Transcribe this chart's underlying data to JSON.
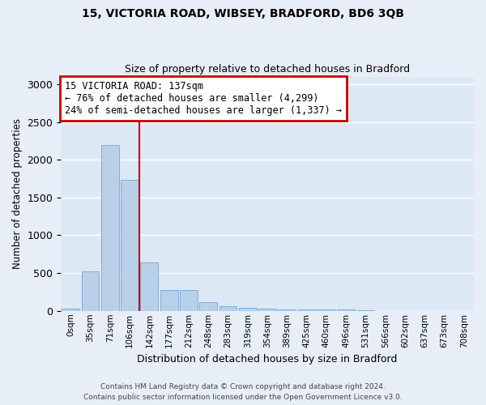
{
  "title1": "15, VICTORIA ROAD, WIBSEY, BRADFORD, BD6 3QB",
  "title2": "Size of property relative to detached houses in Bradford",
  "xlabel": "Distribution of detached houses by size in Bradford",
  "ylabel": "Number of detached properties",
  "categories": [
    "0sqm",
    "35sqm",
    "71sqm",
    "106sqm",
    "142sqm",
    "177sqm",
    "212sqm",
    "248sqm",
    "283sqm",
    "319sqm",
    "354sqm",
    "389sqm",
    "425sqm",
    "460sqm",
    "496sqm",
    "531sqm",
    "566sqm",
    "602sqm",
    "637sqm",
    "673sqm",
    "708sqm"
  ],
  "values": [
    30,
    525,
    2190,
    1730,
    640,
    280,
    280,
    120,
    65,
    40,
    25,
    20,
    20,
    20,
    20,
    5,
    2,
    2,
    2,
    2,
    2
  ],
  "bar_color": "#b8d0e8",
  "bar_edge_color": "#6699cc",
  "background_color": "#dde8f5",
  "grid_color": "#ffffff",
  "annotation_text": "15 VICTORIA ROAD: 137sqm\n← 76% of detached houses are smaller (4,299)\n24% of semi-detached houses are larger (1,337) →",
  "annotation_box_color": "#ffffff",
  "annotation_box_edge": "#cc0000",
  "vline_index": 4,
  "vline_color": "#cc0000",
  "ylim": [
    0,
    3100
  ],
  "yticks": [
    0,
    500,
    1000,
    1500,
    2000,
    2500,
    3000
  ],
  "fig_bg": "#e8eef8",
  "footer1": "Contains HM Land Registry data © Crown copyright and database right 2024.",
  "footer2": "Contains public sector information licensed under the Open Government Licence v3.0."
}
